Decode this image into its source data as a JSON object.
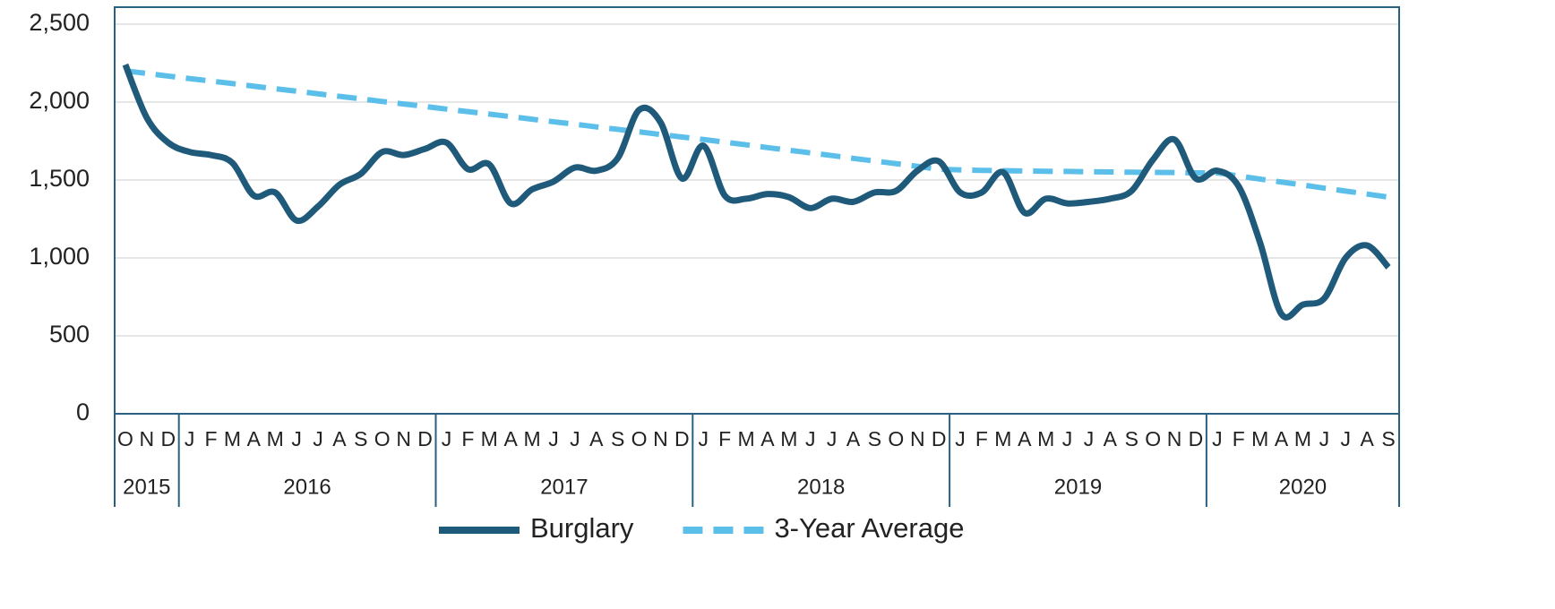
{
  "chart_data": {
    "type": "line",
    "categories": [
      "O",
      "N",
      "D",
      "J",
      "F",
      "M",
      "A",
      "M",
      "J",
      "J",
      "A",
      "S",
      "O",
      "N",
      "D",
      "J",
      "F",
      "M",
      "A",
      "M",
      "J",
      "J",
      "A",
      "S",
      "O",
      "N",
      "D",
      "J",
      "F",
      "M",
      "A",
      "M",
      "J",
      "J",
      "A",
      "S",
      "O",
      "N",
      "D",
      "J",
      "F",
      "M",
      "A",
      "M",
      "J",
      "J",
      "A",
      "S",
      "O",
      "N",
      "D",
      "J",
      "F",
      "M",
      "A",
      "M",
      "J",
      "J",
      "A",
      "S"
    ],
    "years": [
      "2015",
      "2016",
      "2017",
      "2018",
      "2019",
      "2020"
    ],
    "series": [
      {
        "name": "Burglary",
        "color": "#1f5a7a",
        "dashed": false,
        "values": [
          2240,
          1900,
          1740,
          1680,
          1660,
          1610,
          1400,
          1420,
          1240,
          1330,
          1470,
          1540,
          1680,
          1660,
          1700,
          1740,
          1570,
          1600,
          1350,
          1440,
          1490,
          1580,
          1560,
          1640,
          1950,
          1870,
          1510,
          1720,
          1400,
          1380,
          1410,
          1390,
          1320,
          1380,
          1360,
          1420,
          1430,
          1560,
          1620,
          1420,
          1420,
          1550,
          1290,
          1380,
          1350,
          1360,
          1380,
          1430,
          1630,
          1760,
          1510,
          1560,
          1460,
          1100,
          640,
          700,
          740,
          1000,
          1080,
          940
        ]
      },
      {
        "name": "3-Year Average",
        "color": "#5bbfea",
        "dashed": true,
        "values": [
          2200,
          2184,
          2167,
          2151,
          2135,
          2119,
          2102,
          2086,
          2070,
          2053,
          2037,
          2021,
          2004,
          1988,
          1972,
          1955,
          1939,
          1923,
          1907,
          1890,
          1874,
          1858,
          1841,
          1825,
          1809,
          1792,
          1776,
          1760,
          1743,
          1726,
          1708,
          1691,
          1674,
          1657,
          1639,
          1622,
          1605,
          1588,
          1570,
          1565,
          1562,
          1560,
          1558,
          1556,
          1555,
          1553,
          1552,
          1550,
          1549,
          1548,
          1546,
          1545,
          1526,
          1506,
          1487,
          1468,
          1448,
          1429,
          1410,
          1390
        ]
      }
    ],
    "ylim": [
      0,
      2500
    ],
    "yticks": [
      0,
      500,
      {
        "value": 1000,
        "label": "1,000"
      },
      {
        "value": 1500,
        "label": "1,500"
      },
      {
        "value": 2000,
        "label": "2,000"
      },
      {
        "value": 2500,
        "label": "2,500"
      }
    ],
    "grid": true
  }
}
